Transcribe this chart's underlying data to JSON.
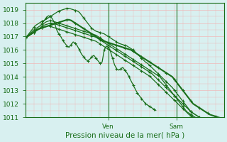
{
  "xlabel": "Pression niveau de la mer( hPa )",
  "bg_color": "#d8f0f0",
  "grid_color": "#f0b8b8",
  "line_color": "#1a6e1a",
  "ylim": [
    1011.0,
    1019.5
  ],
  "xlim": [
    0,
    96
  ],
  "ven_x": 40,
  "sam_x": 73,
  "tick_fontsize": 6.5,
  "label_fontsize": 7.5,
  "series": [
    [
      1016.9,
      1017.05,
      1017.15,
      1017.25,
      1017.35,
      1017.5,
      1017.55,
      1017.6,
      1017.65,
      1017.7,
      1017.75,
      1017.8,
      1017.85,
      1017.9,
      1017.95,
      1018.0,
      1018.05,
      1018.1,
      1018.15,
      1018.2,
      1018.25,
      1018.25,
      1018.2,
      1018.1,
      1018.0,
      1017.9,
      1017.8,
      1017.7,
      1017.6,
      1017.5,
      1017.4,
      1017.3,
      1017.2,
      1017.1,
      1017.0,
      1016.9,
      1016.8,
      1016.7,
      1016.65,
      1016.6,
      1016.55,
      1016.5,
      1016.45,
      1016.4,
      1016.35,
      1016.3,
      1016.25,
      1016.2,
      1016.15,
      1016.1,
      1016.05,
      1016.0,
      1015.9,
      1015.8,
      1015.7,
      1015.6,
      1015.5,
      1015.4,
      1015.3,
      1015.2,
      1015.1,
      1015.0,
      1014.9,
      1014.8,
      1014.7,
      1014.6,
      1014.5,
      1014.4,
      1014.3,
      1014.2,
      1014.1,
      1014.0,
      1013.8,
      1013.6,
      1013.4,
      1013.2,
      1013.0,
      1012.8,
      1012.6,
      1012.4,
      1012.2,
      1012.0,
      1011.9,
      1011.8,
      1011.7,
      1011.6,
      1011.5,
      1011.4,
      1011.3,
      1011.2,
      1011.15,
      1011.1,
      1011.05,
      1011.0,
      1010.95,
      1010.9
    ],
    [
      1016.9,
      1017.1,
      1017.3,
      1017.5,
      1017.7,
      1017.85,
      1017.95,
      1018.05,
      1018.15,
      1018.2,
      1018.3,
      1018.4,
      1018.5,
      1018.6,
      1018.7,
      1018.8,
      1018.9,
      1018.95,
      1019.0,
      1019.05,
      1019.1,
      1019.1,
      1019.05,
      1019.0,
      1018.95,
      1018.9,
      1018.8,
      1018.6,
      1018.4,
      1018.2,
      1018.0,
      1017.8,
      1017.6,
      1017.5,
      1017.4,
      1017.35,
      1017.3,
      1017.25,
      1017.2,
      1017.1,
      1017.0,
      1016.9,
      1016.8,
      1016.7,
      1016.6,
      1016.5,
      1016.45,
      1016.4,
      1016.35,
      1016.3,
      1016.2,
      1016.1,
      1016.0,
      1015.85,
      1015.7,
      1015.55,
      1015.4,
      1015.25,
      1015.1,
      1015.0,
      1014.85,
      1014.7,
      1014.55,
      1014.4,
      1014.25,
      1014.1,
      1013.95,
      1013.8,
      1013.65,
      1013.5,
      1013.35,
      1013.2,
      1013.0,
      1012.8,
      1012.6,
      1012.4,
      1012.2,
      1012.0,
      1011.8,
      1011.6,
      1011.4,
      1011.3,
      1011.2,
      1011.1,
      1011.0,
      1010.9,
      1010.8,
      1010.7,
      1010.6,
      1010.5,
      1010.45,
      1010.4,
      1010.35,
      1010.3,
      1010.25,
      1010.2
    ],
    [
      1016.9,
      1017.05,
      1017.2,
      1017.35,
      1017.5,
      1017.6,
      1017.7,
      1017.8,
      1017.9,
      1018.0,
      1018.1,
      1018.15,
      1018.2,
      1018.15,
      1018.1,
      1018.05,
      1018.0,
      1017.95,
      1017.9,
      1017.85,
      1017.8,
      1017.75,
      1017.7,
      1017.65,
      1017.6,
      1017.55,
      1017.5,
      1017.45,
      1017.4,
      1017.35,
      1017.3,
      1017.25,
      1017.2,
      1017.15,
      1017.1,
      1017.0,
      1016.9,
      1016.8,
      1016.7,
      1016.6,
      1016.5,
      1016.4,
      1016.3,
      1016.2,
      1016.1,
      1016.0,
      1015.9,
      1015.8,
      1015.7,
      1015.6,
      1015.5,
      1015.4,
      1015.3,
      1015.2,
      1015.1,
      1015.0,
      1014.9,
      1014.8,
      1014.7,
      1014.6,
      1014.5,
      1014.4,
      1014.3,
      1014.2,
      1014.1,
      1014.0,
      1013.8,
      1013.6,
      1013.4,
      1013.2,
      1013.0,
      1012.8,
      1012.6,
      1012.4,
      1012.2,
      1012.0,
      1011.8,
      1011.6,
      1011.4,
      1011.3,
      1011.2,
      1011.1,
      1011.0,
      1010.9,
      1010.8,
      1010.7,
      1010.6,
      1010.5,
      1010.45,
      1010.4,
      1010.35,
      1010.3,
      1010.25,
      1010.2,
      1010.15,
      1010.1
    ],
    [
      1016.9,
      1017.0,
      1017.1,
      1017.2,
      1017.3,
      1017.45,
      1017.55,
      1017.65,
      1017.75,
      1017.85,
      1017.9,
      1017.95,
      1018.0,
      1018.0,
      1017.95,
      1017.9,
      1017.85,
      1017.8,
      1017.75,
      1017.7,
      1017.65,
      1017.6,
      1017.55,
      1017.5,
      1017.45,
      1017.4,
      1017.35,
      1017.3,
      1017.25,
      1017.2,
      1017.15,
      1017.1,
      1017.05,
      1017.0,
      1016.95,
      1016.85,
      1016.75,
      1016.65,
      1016.55,
      1016.45,
      1016.35,
      1016.25,
      1016.15,
      1016.05,
      1015.95,
      1015.85,
      1015.75,
      1015.65,
      1015.55,
      1015.45,
      1015.35,
      1015.25,
      1015.15,
      1015.05,
      1014.95,
      1014.85,
      1014.75,
      1014.65,
      1014.55,
      1014.45,
      1014.35,
      1014.25,
      1014.1,
      1013.95,
      1013.8,
      1013.65,
      1013.5,
      1013.35,
      1013.2,
      1013.05,
      1012.9,
      1012.75,
      1012.6,
      1012.45,
      1012.3,
      1012.15,
      1012.0,
      1011.85,
      1011.7,
      1011.55,
      1011.4,
      1011.3,
      1011.2,
      1011.1,
      1011.0,
      1010.9,
      1010.8,
      1010.7,
      1010.6,
      1010.5,
      1010.45,
      1010.4,
      1010.35,
      1010.3,
      1010.25,
      1010.2
    ],
    [
      1016.9,
      1017.0,
      1017.1,
      1017.2,
      1017.3,
      1017.4,
      1017.5,
      1017.6,
      1017.65,
      1017.7,
      1017.75,
      1017.8,
      1017.75,
      1017.7,
      1017.65,
      1017.6,
      1017.55,
      1017.5,
      1017.45,
      1017.4,
      1017.35,
      1017.3,
      1017.25,
      1017.2,
      1017.15,
      1017.1,
      1017.05,
      1017.0,
      1016.95,
      1016.9,
      1016.85,
      1016.8,
      1016.75,
      1016.7,
      1016.65,
      1016.55,
      1016.45,
      1016.35,
      1016.25,
      1016.15,
      1016.05,
      1015.95,
      1015.85,
      1015.75,
      1015.65,
      1015.55,
      1015.45,
      1015.35,
      1015.25,
      1015.15,
      1015.05,
      1014.95,
      1014.85,
      1014.75,
      1014.65,
      1014.55,
      1014.45,
      1014.35,
      1014.25,
      1014.15,
      1014.05,
      1013.9,
      1013.75,
      1013.6,
      1013.45,
      1013.3,
      1013.15,
      1013.0,
      1012.85,
      1012.7,
      1012.55,
      1012.4,
      1012.25,
      1012.1,
      1011.95,
      1011.8,
      1011.65,
      1011.5,
      1011.35,
      1011.2,
      1011.1,
      1011.0,
      1010.9,
      1010.8,
      1010.7,
      1010.6,
      1010.5,
      1010.4,
      1010.35,
      1010.3,
      1010.25,
      1010.2,
      1010.15,
      1010.1,
      1010.05,
      1010.0
    ]
  ],
  "noisy_line": {
    "x": [
      8,
      9,
      10,
      11,
      12,
      13,
      14,
      15,
      16,
      17,
      18,
      19,
      20,
      21,
      22,
      23,
      24,
      25,
      26,
      27,
      28,
      29,
      30,
      31,
      32,
      33,
      34,
      35,
      36,
      37,
      38,
      39,
      40,
      41,
      42,
      43,
      44,
      45,
      46,
      47,
      48,
      49,
      50,
      51,
      52,
      53,
      54,
      55,
      56,
      57,
      58,
      59,
      60,
      61,
      62,
      63
    ],
    "y": [
      1018.0,
      1018.2,
      1018.4,
      1018.55,
      1018.5,
      1018.3,
      1018.0,
      1017.5,
      1017.2,
      1017.0,
      1016.7,
      1016.5,
      1016.3,
      1016.2,
      1016.4,
      1016.6,
      1016.5,
      1016.3,
      1016.0,
      1015.7,
      1015.5,
      1015.3,
      1015.2,
      1015.3,
      1015.5,
      1015.6,
      1015.4,
      1015.2,
      1015.0,
      1015.1,
      1016.0,
      1016.3,
      1016.2,
      1015.9,
      1015.4,
      1014.9,
      1014.6,
      1014.5,
      1014.6,
      1014.7,
      1014.5,
      1014.3,
      1014.0,
      1013.7,
      1013.4,
      1013.1,
      1012.8,
      1012.6,
      1012.4,
      1012.2,
      1012.0,
      1011.9,
      1011.8,
      1011.7,
      1011.6,
      1011.5
    ]
  }
}
